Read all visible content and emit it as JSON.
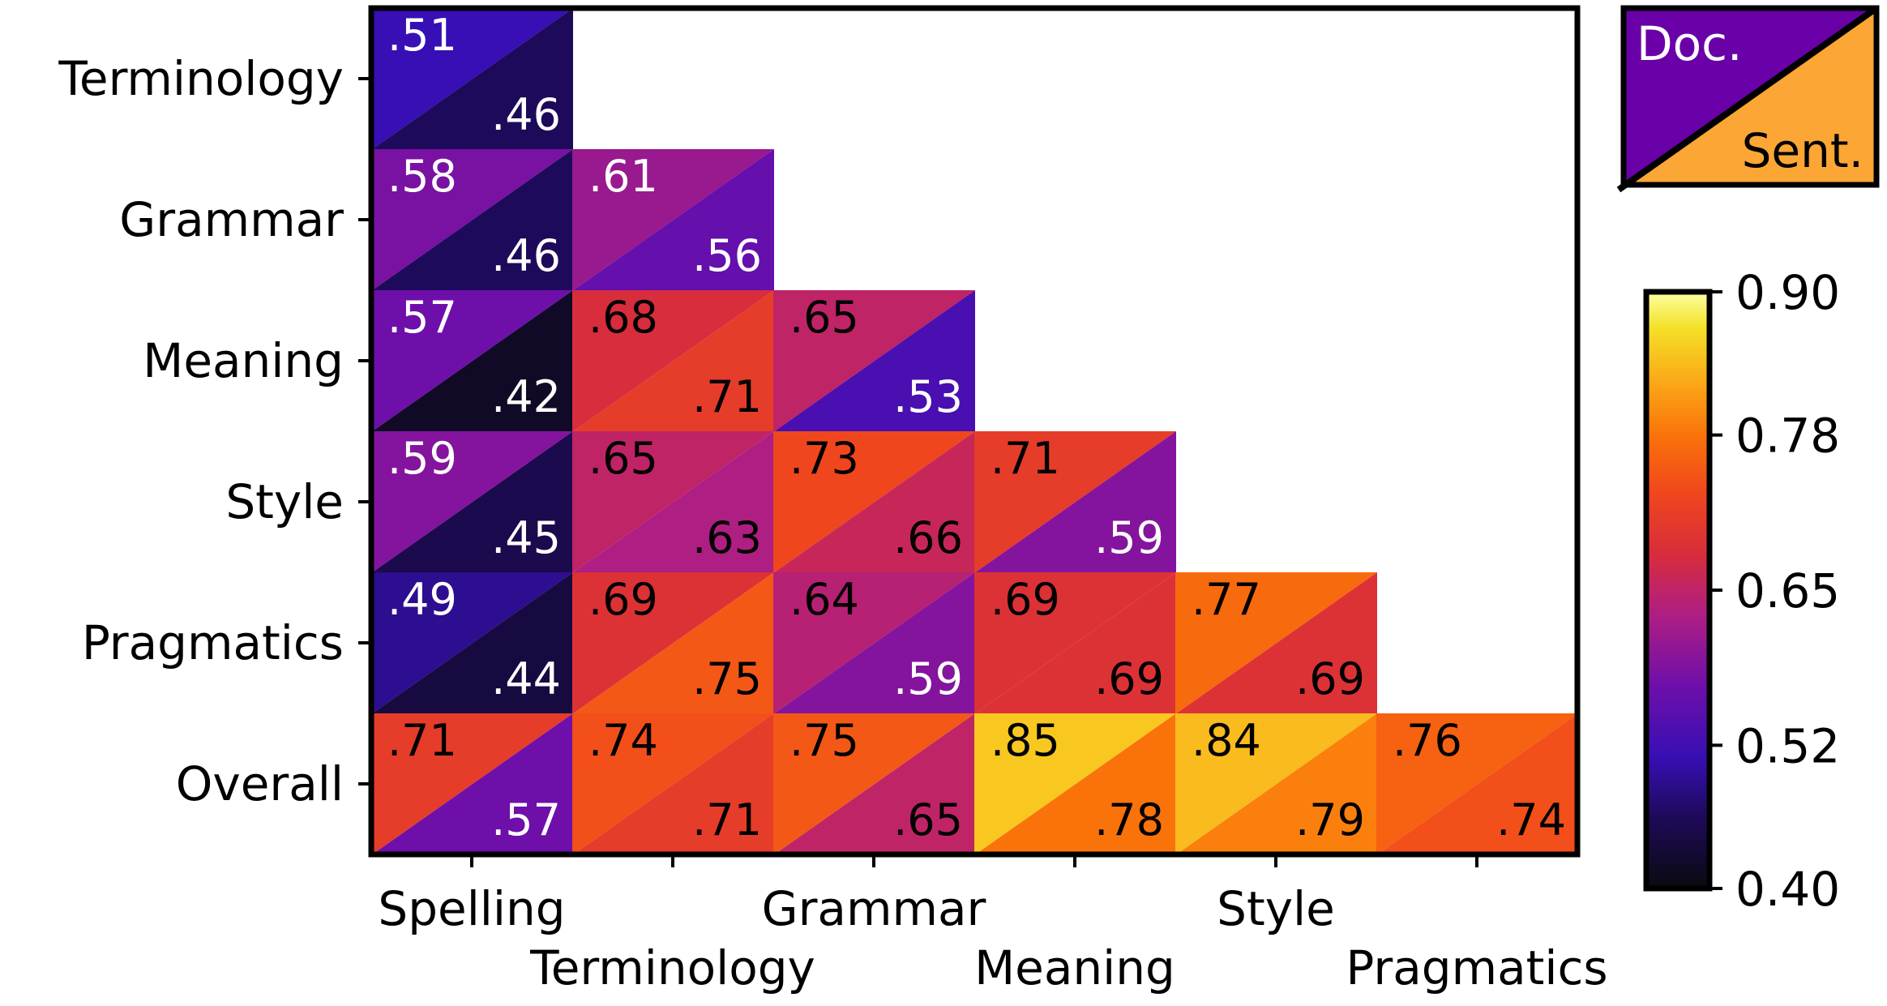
{
  "chart_data": {
    "type": "heatmap",
    "row_labels": [
      "Terminology",
      "Grammar",
      "Meaning",
      "Style",
      "Pragmatics",
      "Overall"
    ],
    "col_labels": [
      "Spelling",
      "Terminology",
      "Grammar",
      "Meaning",
      "Style",
      "Pragmatics"
    ],
    "cells": [
      {
        "row": 0,
        "col": 0,
        "doc": ".51",
        "sent": ".46"
      },
      {
        "row": 1,
        "col": 0,
        "doc": ".58",
        "sent": ".46"
      },
      {
        "row": 1,
        "col": 1,
        "doc": ".61",
        "sent": ".56"
      },
      {
        "row": 2,
        "col": 0,
        "doc": ".57",
        "sent": ".42"
      },
      {
        "row": 2,
        "col": 1,
        "doc": ".68",
        "sent": ".71"
      },
      {
        "row": 2,
        "col": 2,
        "doc": ".65",
        "sent": ".53"
      },
      {
        "row": 3,
        "col": 0,
        "doc": ".59",
        "sent": ".45"
      },
      {
        "row": 3,
        "col": 1,
        "doc": ".65",
        "sent": ".63"
      },
      {
        "row": 3,
        "col": 2,
        "doc": ".73",
        "sent": ".66"
      },
      {
        "row": 3,
        "col": 3,
        "doc": ".71",
        "sent": ".59"
      },
      {
        "row": 4,
        "col": 0,
        "doc": ".49",
        "sent": ".44"
      },
      {
        "row": 4,
        "col": 1,
        "doc": ".69",
        "sent": ".75"
      },
      {
        "row": 4,
        "col": 2,
        "doc": ".64",
        "sent": ".59"
      },
      {
        "row": 4,
        "col": 3,
        "doc": ".69",
        "sent": ".69"
      },
      {
        "row": 4,
        "col": 4,
        "doc": ".77",
        "sent": ".69"
      },
      {
        "row": 5,
        "col": 0,
        "doc": ".71",
        "sent": ".57"
      },
      {
        "row": 5,
        "col": 1,
        "doc": ".74",
        "sent": ".71"
      },
      {
        "row": 5,
        "col": 2,
        "doc": ".75",
        "sent": ".65"
      },
      {
        "row": 5,
        "col": 3,
        "doc": ".85",
        "sent": ".78"
      },
      {
        "row": 5,
        "col": 4,
        "doc": ".84",
        "sent": ".79"
      },
      {
        "row": 5,
        "col": 5,
        "doc": ".76",
        "sent": ".74"
      }
    ],
    "legend": {
      "doc_label": "Doc.",
      "sent_label": "Sent.",
      "doc_color": "#6a00a8",
      "sent_color": "#fca636"
    },
    "colorbar": {
      "min": 0.4,
      "max": 0.9,
      "ticks": [
        "0.90",
        "0.78",
        "0.65",
        "0.52",
        "0.40"
      ],
      "tick_values": [
        0.9,
        0.78,
        0.65,
        0.52,
        0.4
      ],
      "colormap": "plasma-like"
    },
    "title": "",
    "xlabel": "",
    "ylabel": ""
  }
}
